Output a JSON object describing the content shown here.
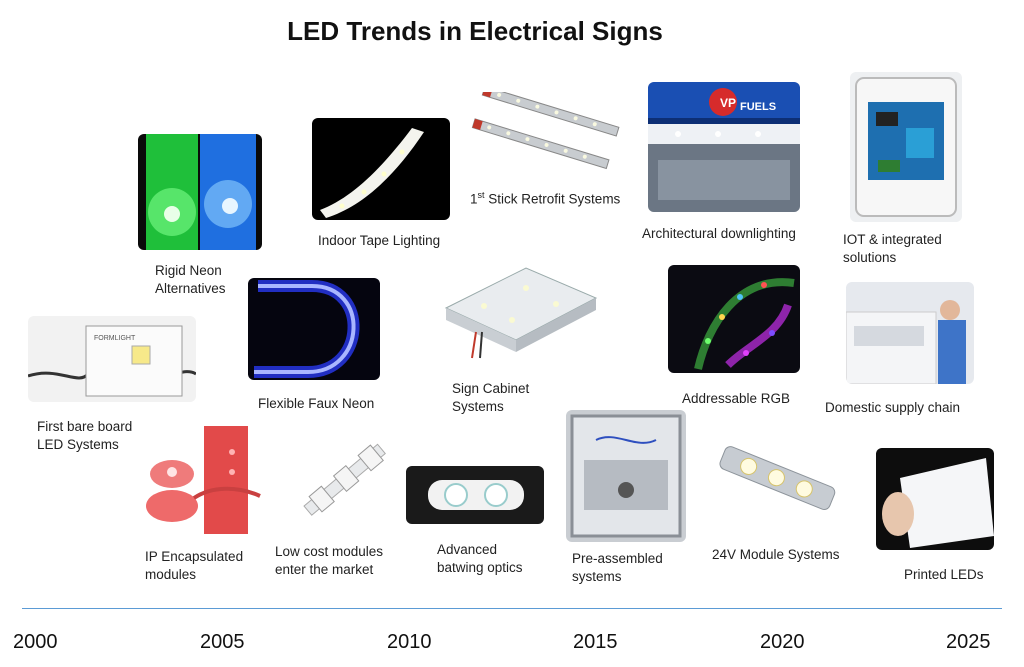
{
  "title": "LED Trends in Electrical Signs",
  "years": [
    "2000",
    "2005",
    "2010",
    "2015",
    "2020",
    "2025"
  ],
  "items": {
    "rigid_neon": "Rigid Neon\nAlternatives",
    "indoor_tape": "Indoor Tape Lighting",
    "stick_retrofit_prefix": "1",
    "stick_retrofit_sup": "st",
    "stick_retrofit_rest": " Stick Retrofit Systems",
    "arch_downlighting": "Architectural downlighting",
    "iot": "IOT & integrated\nsolutions",
    "first_bare_board": "First bare board\nLED Systems",
    "flexible_faux_neon": "Flexible Faux Neon",
    "sign_cabinet": "Sign Cabinet\nSystems",
    "addressable_rgb": "Addressable RGB",
    "domestic_supply": "Domestic supply chain",
    "ip_encapsulated": "IP Encapsulated\nmodules",
    "low_cost": "Low cost modules\nenter the market",
    "batwing": "Advanced\nbatwing optics",
    "pre_assembled": "Pre-assembled\n systems",
    "module_24v": "24V Module Systems",
    "printed_leds": "Printed LEDs"
  },
  "photo_text": {
    "fuels_sign": "FUELS",
    "board_brand": "FORMLIGHT"
  }
}
